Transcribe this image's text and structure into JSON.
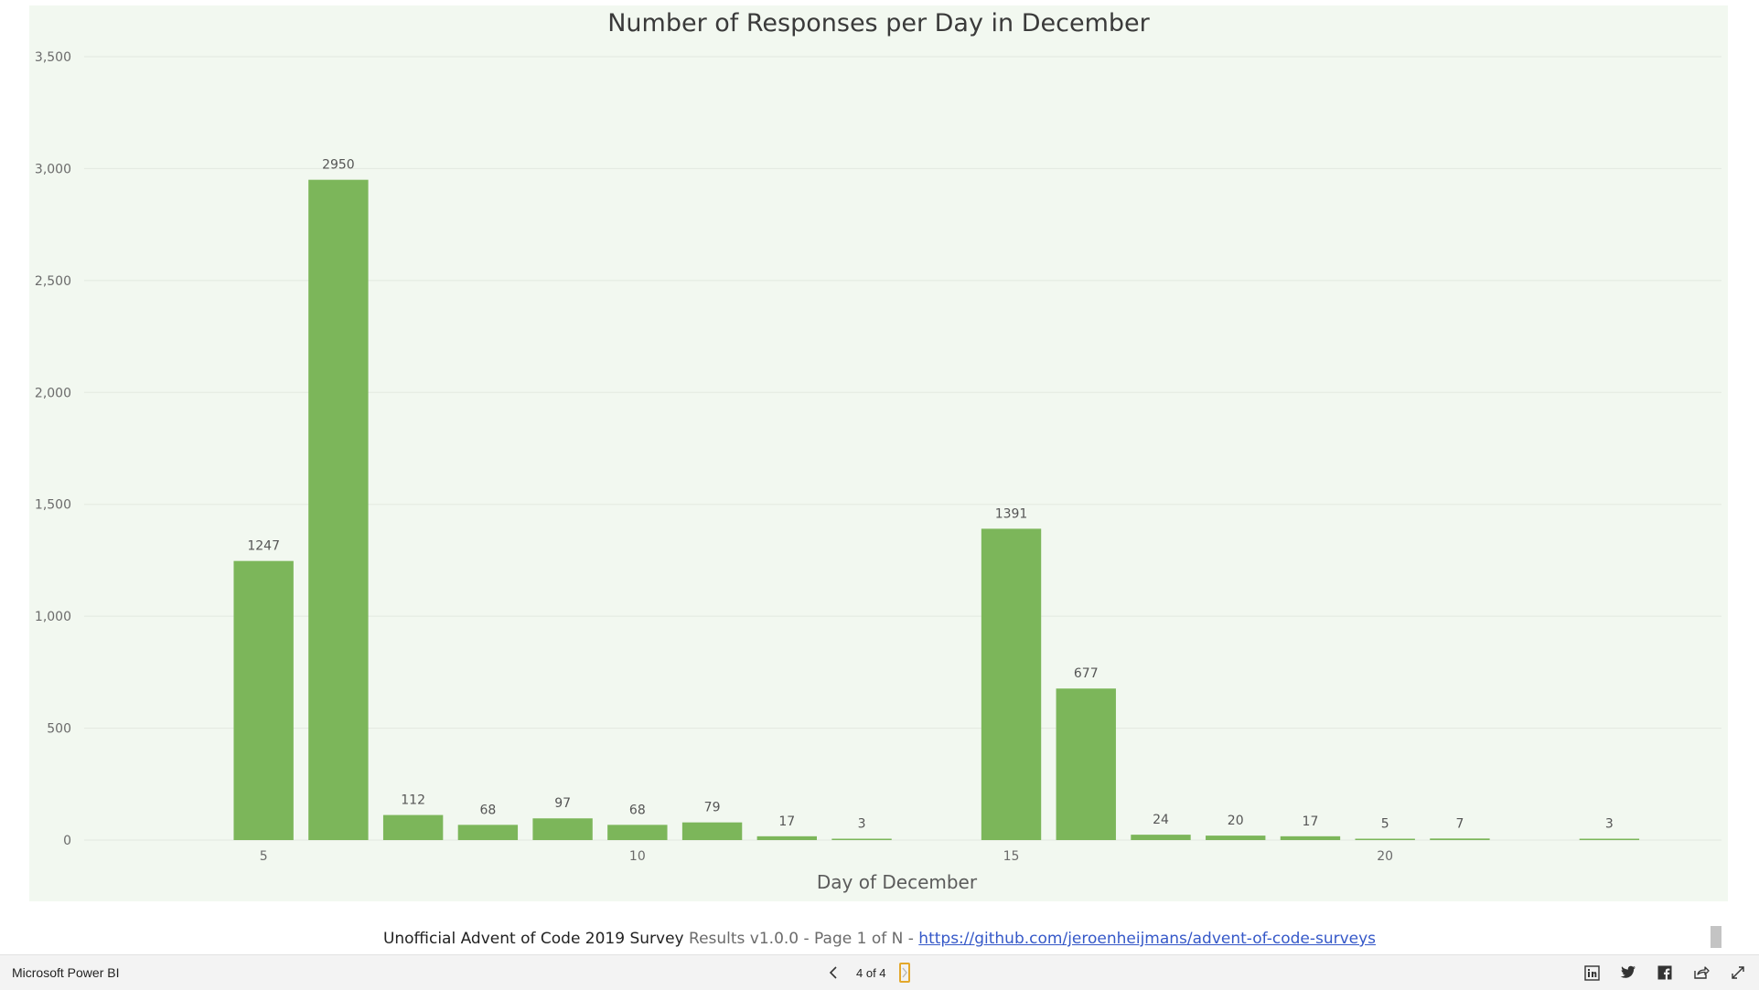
{
  "chart_data": {
    "type": "bar",
    "title": "Number of Responses per Day in December",
    "xlabel": "Day of December",
    "ylabel": "",
    "x": [
      5,
      6,
      7,
      8,
      9,
      10,
      11,
      12,
      13,
      15,
      16,
      17,
      18,
      19,
      20,
      21,
      23
    ],
    "values": [
      1247,
      2950,
      112,
      68,
      97,
      68,
      79,
      17,
      3,
      1391,
      677,
      24,
      20,
      17,
      5,
      7,
      3
    ],
    "xlim": [
      2.6,
      24.5
    ],
    "ylim": [
      0,
      3500
    ],
    "x_ticks": [
      "5",
      "10",
      "15",
      "20"
    ],
    "y_ticks": [
      "0",
      "500",
      "1,000",
      "1,500",
      "2,000",
      "2,500",
      "3,000",
      "3,500"
    ],
    "data_labels": true,
    "grid": true,
    "bar_color": "#7cb65a"
  },
  "footer": {
    "title": "Unofficial Advent of Code 2019 Survey",
    "subtitle": "Results v1.0.0 - Page 1 of N -",
    "link": "https://github.com/jeroenheijmans/advent-of-code-surveys"
  },
  "bottom_bar": {
    "brand": "Microsoft Power BI",
    "page_indicator": "4 of 4",
    "icons": [
      "linkedin-icon",
      "twitter-icon",
      "facebook-icon",
      "share-icon",
      "fullscreen-icon"
    ]
  }
}
